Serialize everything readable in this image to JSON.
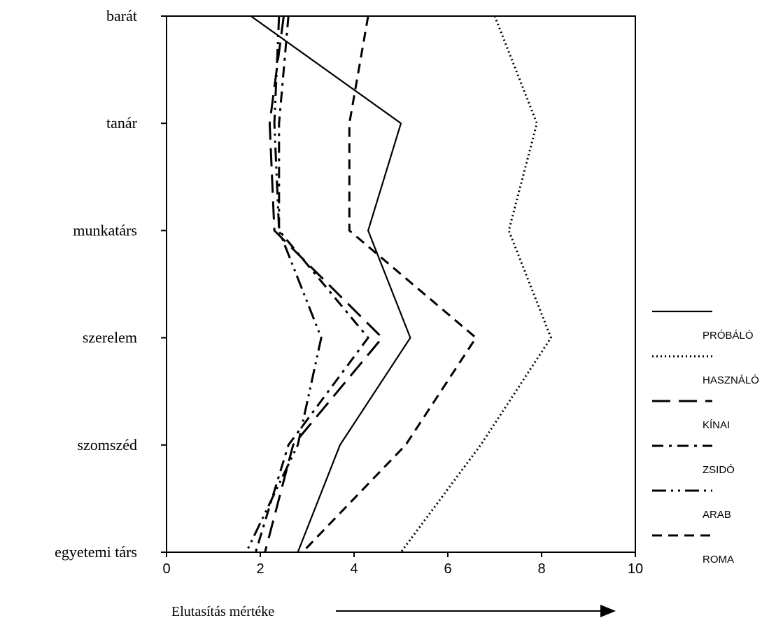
{
  "chart_data": {
    "type": "line",
    "title": "",
    "xlabel": "Elutasítás mértéke",
    "ylabel": "",
    "xlim": [
      0,
      10
    ],
    "x_ticks": [
      "0",
      "2",
      "4",
      "6",
      "8",
      "10"
    ],
    "categories": [
      "barát",
      "tanár",
      "munkatárs",
      "szerelem",
      "szomszéd",
      "egyetemi társ"
    ],
    "legend_position": "right",
    "series": [
      {
        "name": "PRÓBÁLÓ",
        "style": "solid",
        "values": [
          1.8,
          5.0,
          4.3,
          5.2,
          3.7,
          2.8
        ]
      },
      {
        "name": "HASZNÁLÓ",
        "style": "dotted",
        "values": [
          7.0,
          7.9,
          7.3,
          8.2,
          6.7,
          5.0
        ]
      },
      {
        "name": "KÍNAI",
        "style": "long-dash",
        "values": [
          2.5,
          2.2,
          2.3,
          4.6,
          2.7,
          2.1
        ]
      },
      {
        "name": "ZSIDÓ",
        "style": "dash-dot",
        "values": [
          2.6,
          2.4,
          2.4,
          4.3,
          2.6,
          1.9
        ]
      },
      {
        "name": "ARAB",
        "style": "long-dash-dot-dot",
        "values": [
          2.4,
          2.3,
          2.4,
          3.3,
          2.8,
          1.7
        ]
      },
      {
        "name": "ROMA",
        "style": "dashed",
        "values": [
          4.3,
          3.9,
          3.9,
          6.6,
          5.1,
          2.9
        ]
      }
    ]
  }
}
